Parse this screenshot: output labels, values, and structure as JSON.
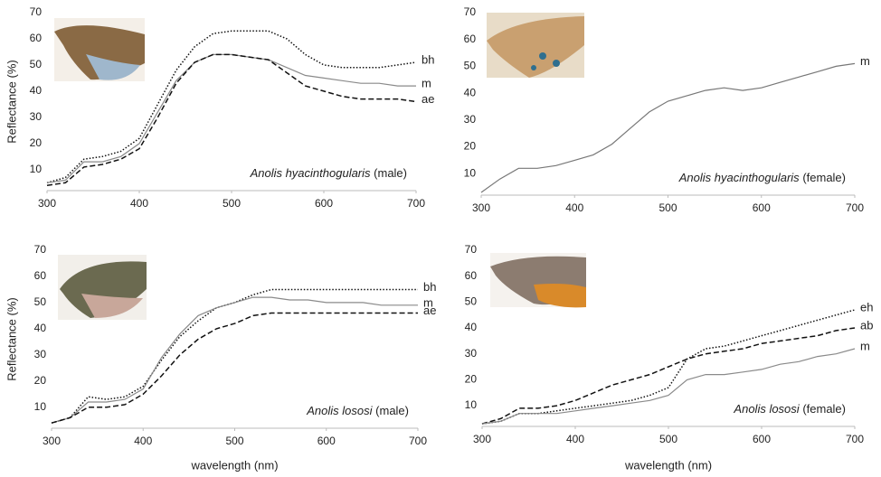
{
  "chart_data": [
    {
      "type": "line",
      "y_label": "Reflectance (%)",
      "annotation": {
        "species": "Anolis hyacinthogularis",
        "sex": "(male)"
      },
      "x": [
        300,
        320,
        340,
        360,
        380,
        400,
        420,
        440,
        460,
        480,
        500,
        520,
        540,
        560,
        580,
        600,
        620,
        640,
        660,
        680,
        700
      ],
      "xlim": [
        300,
        700
      ],
      "xticks": [
        300,
        400,
        500,
        600,
        700
      ],
      "ylim": [
        2,
        70
      ],
      "yticks": [
        10,
        20,
        30,
        40,
        50,
        60,
        70
      ],
      "series": [
        {
          "name": "bh",
          "color": "#111111",
          "style": "dotted",
          "values": [
            5,
            7,
            14,
            15,
            17,
            22,
            35,
            48,
            57,
            62,
            63,
            63,
            63,
            60,
            54,
            50,
            49,
            49,
            49,
            50,
            51
          ]
        },
        {
          "name": "m",
          "color": "#8a8a8a",
          "style": "solid",
          "values": [
            5,
            6,
            13,
            13,
            15,
            20,
            32,
            44,
            51,
            54,
            54,
            53,
            52,
            49,
            46,
            45,
            44,
            43,
            43,
            42,
            42
          ]
        },
        {
          "name": "ae",
          "color": "#111111",
          "style": "dashed",
          "values": [
            4,
            5,
            11,
            12,
            14,
            18,
            30,
            43,
            51,
            54,
            54,
            53,
            52,
            47,
            42,
            40,
            38,
            37,
            37,
            37,
            36
          ]
        }
      ]
    },
    {
      "type": "line",
      "annotation": {
        "species": "Anolis hyacinthogularis",
        "sex": "(female)"
      },
      "x": [
        300,
        320,
        340,
        360,
        380,
        400,
        420,
        440,
        460,
        480,
        500,
        520,
        540,
        560,
        580,
        600,
        620,
        640,
        660,
        680,
        700
      ],
      "xlim": [
        300,
        700
      ],
      "xticks": [
        300,
        400,
        500,
        600,
        700
      ],
      "ylim": [
        2,
        70
      ],
      "yticks": [
        10,
        20,
        30,
        40,
        50,
        60,
        70
      ],
      "series": [
        {
          "name": "m",
          "color": "#777777",
          "style": "solid",
          "values": [
            3,
            8,
            12,
            12,
            13,
            15,
            17,
            21,
            27,
            33,
            37,
            39,
            41,
            42,
            41,
            42,
            44,
            46,
            48,
            50,
            51
          ]
        }
      ]
    },
    {
      "type": "line",
      "y_label": "Reflectance (%)",
      "x_label": "wavelength (nm)",
      "annotation": {
        "species": "Anolis lososi",
        "sex": "(male)"
      },
      "x": [
        300,
        320,
        340,
        360,
        380,
        400,
        420,
        440,
        460,
        480,
        500,
        520,
        540,
        560,
        580,
        600,
        620,
        640,
        660,
        680,
        700
      ],
      "xlim": [
        300,
        700
      ],
      "xticks": [
        300,
        400,
        500,
        600,
        700
      ],
      "ylim": [
        2,
        70
      ],
      "yticks": [
        10,
        20,
        30,
        40,
        50,
        60,
        70
      ],
      "series": [
        {
          "name": "bh",
          "color": "#111111",
          "style": "dotted",
          "values": [
            4,
            6,
            14,
            13,
            14,
            18,
            28,
            37,
            43,
            48,
            50,
            53,
            55,
            55,
            55,
            55,
            55,
            55,
            55,
            55,
            55
          ]
        },
        {
          "name": "m",
          "color": "#8a8a8a",
          "style": "solid",
          "values": [
            4,
            6,
            12,
            12,
            13,
            17,
            29,
            38,
            45,
            48,
            50,
            52,
            52,
            51,
            51,
            50,
            50,
            50,
            49,
            49,
            49
          ]
        },
        {
          "name": "ae",
          "color": "#111111",
          "style": "dashed",
          "values": [
            4,
            6,
            10,
            10,
            11,
            15,
            22,
            30,
            36,
            40,
            42,
            45,
            46,
            46,
            46,
            46,
            46,
            46,
            46,
            46,
            46
          ]
        }
      ]
    },
    {
      "type": "line",
      "x_label": "wavelength (nm)",
      "annotation": {
        "species": "Anolis lososi",
        "sex": "(female)"
      },
      "x": [
        300,
        320,
        340,
        360,
        380,
        400,
        420,
        440,
        460,
        480,
        500,
        520,
        540,
        560,
        580,
        600,
        620,
        640,
        660,
        680,
        700
      ],
      "xlim": [
        300,
        700
      ],
      "xticks": [
        300,
        400,
        500,
        600,
        700
      ],
      "ylim": [
        2,
        70
      ],
      "yticks": [
        10,
        20,
        30,
        40,
        50,
        60,
        70
      ],
      "series": [
        {
          "name": "eh",
          "color": "#111111",
          "style": "dotted",
          "values": [
            3,
            4,
            7,
            7,
            8,
            9,
            10,
            11,
            12,
            14,
            17,
            28,
            32,
            33,
            35,
            37,
            39,
            41,
            43,
            45,
            47
          ]
        },
        {
          "name": "ab",
          "color": "#111111",
          "style": "dashed",
          "values": [
            3,
            5,
            9,
            9,
            10,
            12,
            15,
            18,
            20,
            22,
            25,
            28,
            30,
            31,
            32,
            34,
            35,
            36,
            37,
            39,
            40
          ]
        },
        {
          "name": "m",
          "color": "#8a8a8a",
          "style": "solid",
          "values": [
            3,
            4,
            7,
            7,
            7,
            8,
            9,
            10,
            11,
            12,
            14,
            20,
            22,
            22,
            23,
            24,
            26,
            27,
            29,
            30,
            32
          ]
        }
      ]
    }
  ]
}
